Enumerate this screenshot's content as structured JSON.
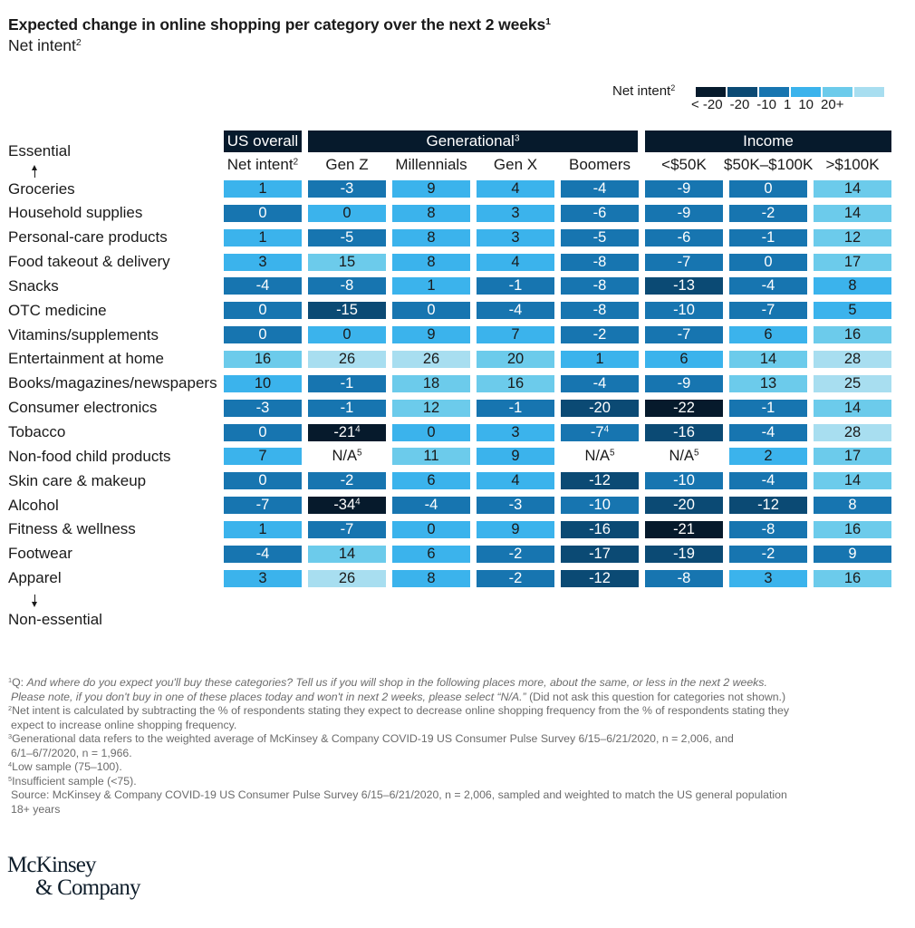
{
  "title": "Expected change in online shopping per category over the next 2 weeks",
  "title_sup": "1",
  "subtitle": "Net intent",
  "subtitle_sup": "2",
  "legend": {
    "label": "Net intent",
    "label_sup": "2",
    "colors": [
      "#061a2c",
      "#0b4a74",
      "#1775b0",
      "#3bb3ec",
      "#6ccbeb",
      "#a8def0"
    ],
    "ticks": [
      "< -20",
      "-20",
      "-10",
      "1",
      "10",
      "20+"
    ]
  },
  "axis": {
    "top": "Essential",
    "bottom": "Non-essential"
  },
  "group_headers": [
    {
      "label": "US overall",
      "sup": ""
    },
    {
      "label": "Generational",
      "sup": "3"
    },
    {
      "label": "Income",
      "sup": ""
    }
  ],
  "chart_data": {
    "type": "heatmap",
    "title": "Expected change in online shopping per category over the next 2 weeks",
    "subtitle": "Net intent",
    "value_label": "Net intent (% expecting increase minus % expecting decrease)",
    "color_scale": {
      "bins": [
        "< -20",
        "-20",
        "-10",
        "1",
        "10",
        "20+"
      ],
      "colors": [
        "#061a2c",
        "#0b4a74",
        "#1775b0",
        "#3bb3ec",
        "#6ccbeb",
        "#a8def0"
      ]
    },
    "column_groups": [
      {
        "group": "US overall",
        "columns": [
          "Net intent"
        ]
      },
      {
        "group": "Generational",
        "columns": [
          "Gen Z",
          "Millennials",
          "Gen X",
          "Boomers"
        ]
      },
      {
        "group": "Income",
        "columns": [
          "<$50K",
          "$50K–$100K",
          ">$100K"
        ]
      }
    ],
    "columns": [
      "Net intent",
      "Gen Z",
      "Millennials",
      "Gen X",
      "Boomers",
      "<$50K",
      "$50K–$100K",
      ">$100K"
    ],
    "column_sups": [
      "2",
      "",
      "",
      "",
      "",
      "",
      "",
      ""
    ],
    "y_axis_direction": "Essential (top) to Non-essential (bottom)",
    "rows": [
      {
        "category": "Groceries",
        "values": [
          1,
          -3,
          9,
          4,
          -4,
          -9,
          0,
          14
        ],
        "notes": [
          "",
          "",
          "",
          "",
          "",
          "",
          "",
          ""
        ],
        "levels": [
          3,
          2,
          3,
          3,
          2,
          2,
          2,
          4
        ]
      },
      {
        "category": "Household supplies",
        "values": [
          0,
          0,
          8,
          3,
          -6,
          -9,
          -2,
          14
        ],
        "notes": [
          "",
          "",
          "",
          "",
          "",
          "",
          "",
          ""
        ],
        "levels": [
          2,
          3,
          3,
          3,
          2,
          2,
          2,
          4
        ]
      },
      {
        "category": "Personal-care products",
        "values": [
          1,
          -5,
          8,
          3,
          -5,
          -6,
          -1,
          12
        ],
        "notes": [
          "",
          "",
          "",
          "",
          "",
          "",
          "",
          ""
        ],
        "levels": [
          3,
          2,
          3,
          3,
          2,
          2,
          2,
          4
        ]
      },
      {
        "category": "Food takeout & delivery",
        "values": [
          3,
          15,
          8,
          4,
          -8,
          -7,
          0,
          17
        ],
        "notes": [
          "",
          "",
          "",
          "",
          "",
          "",
          "",
          ""
        ],
        "levels": [
          3,
          4,
          3,
          3,
          2,
          2,
          2,
          4
        ]
      },
      {
        "category": "Snacks",
        "values": [
          -4,
          -8,
          1,
          -1,
          -8,
          -13,
          -4,
          8
        ],
        "notes": [
          "",
          "",
          "",
          "",
          "",
          "",
          "",
          ""
        ],
        "levels": [
          2,
          2,
          3,
          2,
          2,
          1,
          2,
          3
        ]
      },
      {
        "category": "OTC medicine",
        "values": [
          0,
          -15,
          0,
          -4,
          -8,
          -10,
          -7,
          5
        ],
        "notes": [
          "",
          "",
          "",
          "",
          "",
          "",
          "",
          ""
        ],
        "levels": [
          2,
          1,
          2,
          2,
          2,
          2,
          2,
          3
        ]
      },
      {
        "category": "Vitamins/supplements",
        "values": [
          0,
          0,
          9,
          7,
          -2,
          -7,
          6,
          16
        ],
        "notes": [
          "",
          "",
          "",
          "",
          "",
          "",
          "",
          ""
        ],
        "levels": [
          2,
          3,
          3,
          3,
          2,
          2,
          3,
          4
        ]
      },
      {
        "category": "Entertainment at home",
        "values": [
          16,
          26,
          26,
          20,
          1,
          6,
          14,
          28
        ],
        "notes": [
          "",
          "",
          "",
          "",
          "",
          "",
          "",
          ""
        ],
        "levels": [
          4,
          5,
          5,
          4,
          3,
          3,
          4,
          5
        ]
      },
      {
        "category": "Books/magazines/newspapers",
        "values": [
          10,
          -1,
          18,
          16,
          -4,
          -9,
          13,
          25
        ],
        "notes": [
          "",
          "",
          "",
          "",
          "",
          "",
          "",
          ""
        ],
        "levels": [
          3,
          2,
          4,
          4,
          2,
          2,
          4,
          5
        ]
      },
      {
        "category": "Consumer electronics",
        "values": [
          -3,
          -1,
          12,
          -1,
          -20,
          -22,
          -1,
          14
        ],
        "notes": [
          "",
          "",
          "",
          "",
          "",
          "",
          "",
          ""
        ],
        "levels": [
          2,
          2,
          4,
          2,
          1,
          0,
          2,
          4
        ]
      },
      {
        "category": "Tobacco",
        "values": [
          0,
          -21,
          0,
          3,
          -7,
          -16,
          -4,
          28
        ],
        "notes": [
          "",
          "4",
          "",
          "",
          "4",
          "",
          "",
          ""
        ],
        "levels": [
          2,
          0,
          3,
          3,
          2,
          1,
          2,
          5
        ]
      },
      {
        "category": "Non-food child products",
        "values": [
          7,
          null,
          11,
          9,
          null,
          null,
          2,
          17
        ],
        "notes": [
          "",
          "5",
          "",
          "",
          "5",
          "5",
          "",
          ""
        ],
        "levels": [
          3,
          -1,
          4,
          3,
          -1,
          -1,
          3,
          4
        ]
      },
      {
        "category": "Skin care & makeup",
        "values": [
          0,
          -2,
          6,
          4,
          -12,
          -10,
          -4,
          14
        ],
        "notes": [
          "",
          "",
          "",
          "",
          "",
          "",
          "",
          ""
        ],
        "levels": [
          2,
          2,
          3,
          3,
          1,
          2,
          2,
          4
        ]
      },
      {
        "category": "Alcohol",
        "values": [
          -7,
          -34,
          -4,
          -3,
          -10,
          -20,
          -12,
          8
        ],
        "notes": [
          "",
          "4",
          "",
          "",
          "",
          "",
          "",
          ""
        ],
        "levels": [
          2,
          0,
          2,
          2,
          2,
          1,
          1,
          2
        ]
      },
      {
        "category": "Fitness & wellness",
        "values": [
          1,
          -7,
          0,
          9,
          -16,
          -21,
          -8,
          16
        ],
        "notes": [
          "",
          "",
          "",
          "",
          "",
          "",
          "",
          ""
        ],
        "levels": [
          3,
          2,
          3,
          3,
          1,
          0,
          2,
          4
        ]
      },
      {
        "category": "Footwear",
        "values": [
          -4,
          14,
          6,
          -2,
          -17,
          -19,
          -2,
          9
        ],
        "notes": [
          "",
          "",
          "",
          "",
          "",
          "",
          "",
          ""
        ],
        "levels": [
          2,
          4,
          3,
          2,
          1,
          1,
          2,
          2
        ]
      },
      {
        "category": "Apparel",
        "values": [
          3,
          26,
          8,
          -2,
          -12,
          -8,
          3,
          16
        ],
        "notes": [
          "",
          "",
          "",
          "",
          "",
          "",
          "",
          ""
        ],
        "levels": [
          3,
          5,
          3,
          2,
          1,
          2,
          3,
          4
        ]
      }
    ],
    "na_label": "N/A"
  },
  "footnotes": [
    {
      "sup": "1",
      "lead": "Q: ",
      "italic": "And where do you expect you'll buy these categories? Tell us if you will shop in the following places more, about the same, or less in the next 2 weeks.",
      "italic2": "Please note, if you don't buy in one of these places today and won't in next 2 weeks, please select “N/A.”",
      "rest": " (Did not ask this question for categories not shown.)"
    },
    {
      "sup": "2",
      "text": "Net intent is calculated by subtracting the % of respondents stating they expect to decrease online shopping frequency from the % of respondents stating they",
      "text2": "expect to increase online shopping frequency."
    },
    {
      "sup": "3",
      "text": "Generational data refers to the weighted average of McKinsey & Company COVID-19 US Consumer Pulse Survey 6/15–6/21/2020, n = 2,006, and",
      "text2": "6/1–6/7/2020, n = 1,966."
    },
    {
      "sup": "4",
      "text": "Low sample (75–100)."
    },
    {
      "sup": "5",
      "text": "Insufficient sample (<75)."
    },
    {
      "sup": "",
      "text": "Source: McKinsey & Company COVID-19 US Consumer Pulse Survey 6/15–6/21/2020, n = 2,006, sampled and weighted to match the US general population",
      "text2": "18+ years"
    }
  ],
  "logo": {
    "line1": "McKinsey",
    "line2": "& Company"
  }
}
